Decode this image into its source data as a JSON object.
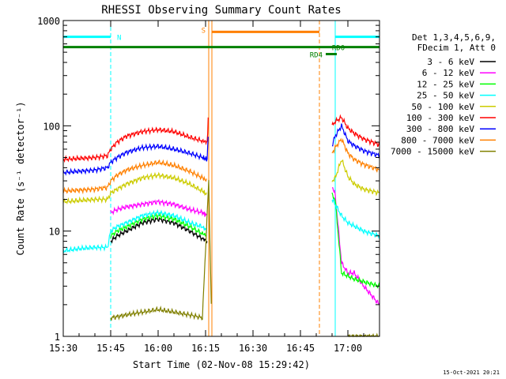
{
  "chart_data": {
    "type": "line",
    "title": "RHESSI Observing Summary Count Rates",
    "xlabel": "Start Time (02-Nov-08 15:29:42)",
    "ylabel": "Count Rate (s⁻¹ detector⁻¹)",
    "yscale": "log",
    "ylim": [
      1,
      1000
    ],
    "xlim_minutes": [
      0,
      100
    ],
    "x_ticks": [
      {
        "t": 0,
        "label": "15:30"
      },
      {
        "t": 15,
        "label": "15:45"
      },
      {
        "t": 30,
        "label": "16:00"
      },
      {
        "t": 45,
        "label": "16:15"
      },
      {
        "t": 60,
        "label": "16:30"
      },
      {
        "t": 75,
        "label": "16:45"
      },
      {
        "t": 90,
        "label": "17:00"
      }
    ],
    "y_ticks": [
      {
        "v": 1,
        "label": "1"
      },
      {
        "v": 10,
        "label": "10"
      },
      {
        "v": 100,
        "label": "100"
      },
      {
        "v": 1000,
        "label": "1000"
      }
    ],
    "legend": {
      "placement": "right",
      "header": [
        "Det 1,3,4,5,6,9,",
        "FDecim 1, Att 0"
      ]
    },
    "series": [
      {
        "name": "3 - 6 keV",
        "color": "#000000",
        "x": [
          15,
          17,
          20,
          25,
          30,
          35,
          40,
          44,
          45.5
        ],
        "y": [
          8,
          9,
          10,
          12,
          13,
          12,
          10,
          8.5,
          8
        ]
      },
      {
        "name": "6 - 12 keV",
        "color": "#ff00ff",
        "x": [
          15,
          17,
          20,
          25,
          30,
          35,
          40,
          44,
          45.5,
          85,
          86,
          88,
          90,
          92,
          95,
          100
        ],
        "y": [
          15,
          16,
          17,
          18,
          19,
          18,
          16,
          15,
          14,
          27,
          22,
          5,
          4,
          4,
          3,
          2
        ]
      },
      {
        "name": "12 - 25 keV",
        "color": "#00ff00",
        "x": [
          15,
          17,
          20,
          25,
          30,
          35,
          40,
          44,
          45.5,
          85,
          86,
          88,
          92,
          100
        ],
        "y": [
          9,
          10,
          11,
          13,
          14,
          13,
          11,
          9.5,
          9,
          22,
          20,
          4,
          3.5,
          3
        ]
      },
      {
        "name": "25 - 50 keV",
        "color": "#00ffff",
        "x": [
          0,
          5,
          10,
          14,
          15,
          17,
          20,
          25,
          30,
          35,
          40,
          44,
          45.5,
          85,
          86,
          88,
          90,
          95,
          100
        ],
        "y": [
          6.5,
          6.8,
          7,
          7,
          10,
          11,
          12,
          14,
          15,
          14,
          12,
          11,
          10,
          20,
          18,
          14,
          12,
          10,
          9
        ]
      },
      {
        "name": "50 - 100 keV",
        "color": "#cccc00",
        "x": [
          0,
          5,
          10,
          14,
          15,
          17,
          20,
          25,
          30,
          35,
          40,
          44,
          45.5,
          85,
          86,
          88,
          90,
          92,
          95,
          100
        ],
        "y": [
          19,
          19.5,
          20,
          20,
          23,
          25,
          28,
          32,
          34,
          32,
          28,
          24,
          22,
          30,
          32,
          48,
          33,
          28,
          25,
          23
        ]
      },
      {
        "name": "100 - 300 keV",
        "color": "#ff0000",
        "x": [
          0,
          5,
          10,
          14,
          15,
          17,
          20,
          25,
          30,
          35,
          40,
          44,
          45.5,
          46,
          85,
          86,
          88,
          90,
          92,
          95,
          100
        ],
        "y": [
          48,
          49,
          50,
          52,
          60,
          70,
          80,
          88,
          92,
          88,
          78,
          72,
          70,
          150,
          100,
          110,
          120,
          95,
          85,
          75,
          66
        ]
      },
      {
        "name": "300 - 800 keV",
        "color": "#0000ff",
        "x": [
          0,
          5,
          10,
          14,
          15,
          17,
          20,
          25,
          30,
          35,
          40,
          44,
          45.5,
          46,
          85,
          86,
          88,
          90,
          92,
          95,
          100
        ],
        "y": [
          36,
          37,
          38,
          40,
          45,
          50,
          56,
          62,
          64,
          60,
          55,
          50,
          48,
          110,
          65,
          80,
          100,
          72,
          65,
          58,
          52
        ]
      },
      {
        "name": "800 - 7000 keV",
        "color": "#ff8000",
        "x": [
          0,
          5,
          10,
          14,
          15,
          17,
          20,
          25,
          30,
          35,
          40,
          44,
          45.5,
          85,
          86,
          88,
          90,
          92,
          95,
          100
        ],
        "y": [
          24,
          24.5,
          25,
          26,
          30,
          34,
          38,
          42,
          45,
          42,
          37,
          32,
          30,
          55,
          62,
          75,
          55,
          48,
          43,
          38
        ]
      },
      {
        "name": "7000 - 15000 keV",
        "color": "#808000",
        "x": [
          15,
          20,
          25,
          30,
          35,
          40,
          44,
          46,
          47,
          90,
          95,
          100
        ],
        "y": [
          1.5,
          1.6,
          1.7,
          1.8,
          1.7,
          1.6,
          1.5,
          30,
          1,
          1,
          1,
          1
        ]
      }
    ],
    "annotations": [
      {
        "text": "N",
        "color": "#00ffff"
      },
      {
        "text": "S",
        "color": "#ff8000"
      },
      {
        "text": "RD0",
        "color": "#008000"
      },
      {
        "text": "RD4",
        "color": "#008000"
      }
    ],
    "flag_bars": [
      {
        "color": "#00ffff",
        "t_start": 0,
        "t_end": 15,
        "y": 700
      },
      {
        "color": "#00ffff",
        "t_start": 86,
        "t_end": 100,
        "y": 700
      },
      {
        "color": "#008000",
        "t_start": 0,
        "t_end": 100,
        "y": 560
      },
      {
        "color": "#ff8000",
        "t_start": 47,
        "t_end": 81,
        "y": 780
      },
      {
        "color": "#008000",
        "t_start": 83,
        "t_end": 86.5,
        "y": 480
      }
    ],
    "vlines": [
      {
        "t": 15,
        "color": "#00ffff",
        "style": "dashed"
      },
      {
        "t": 46,
        "color": "#ff8000",
        "style": "solid"
      },
      {
        "t": 47,
        "color": "#ff8000",
        "style": "solid"
      },
      {
        "t": 81,
        "color": "#ff8000",
        "style": "dashed"
      },
      {
        "t": 86,
        "color": "#00ffff",
        "style": "solid"
      },
      {
        "t": 100,
        "color": "#00ffff",
        "style": "dashed"
      }
    ]
  },
  "footer": {
    "stamp": "15-Oct-2021 20:21"
  }
}
